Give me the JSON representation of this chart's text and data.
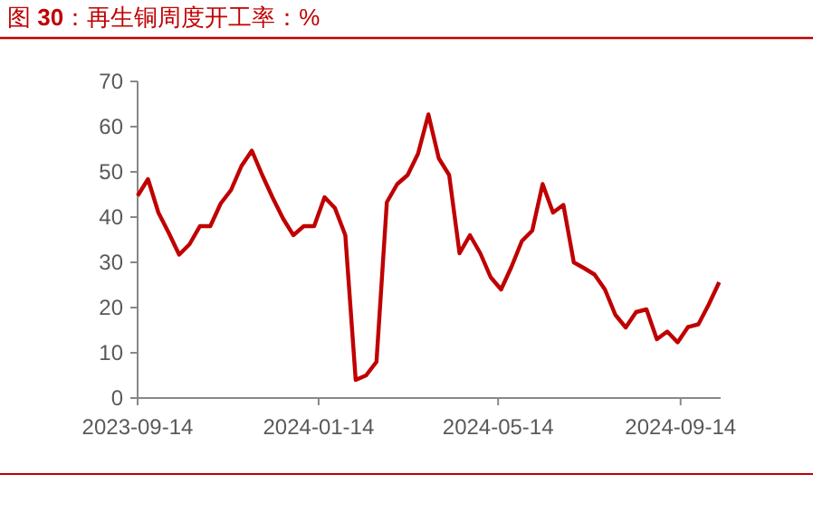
{
  "chart_data": {
    "type": "line",
    "title": "图 30：再生铜周度开工率：%",
    "x": [
      "2023-09-14",
      "2023-09-21",
      "2023-09-28",
      "2023-10-05",
      "2023-10-12",
      "2023-10-19",
      "2023-10-26",
      "2023-11-02",
      "2023-11-09",
      "2023-11-16",
      "2023-11-23",
      "2023-11-30",
      "2023-12-07",
      "2023-12-14",
      "2023-12-21",
      "2023-12-28",
      "2024-01-04",
      "2024-01-11",
      "2024-01-18",
      "2024-01-25",
      "2024-02-01",
      "2024-02-08",
      "2024-02-15",
      "2024-02-22",
      "2024-02-29",
      "2024-03-07",
      "2024-03-14",
      "2024-03-21",
      "2024-03-28",
      "2024-04-04",
      "2024-04-11",
      "2024-04-18",
      "2024-04-25",
      "2024-05-02",
      "2024-05-09",
      "2024-05-16",
      "2024-05-23",
      "2024-05-30",
      "2024-06-06",
      "2024-06-13",
      "2024-06-20",
      "2024-06-27",
      "2024-07-04",
      "2024-07-11",
      "2024-07-18",
      "2024-07-25",
      "2024-08-01",
      "2024-08-08",
      "2024-08-15",
      "2024-08-22",
      "2024-08-29",
      "2024-09-05",
      "2024-09-12",
      "2024-09-19",
      "2024-09-26",
      "2024-10-03",
      "2024-10-10"
    ],
    "series": [
      {
        "color": "#c00000",
        "values": [
          44.7,
          48.4,
          41,
          36.5,
          31.7,
          34,
          38,
          38,
          43,
          46,
          51.3,
          54.7,
          49.3,
          44.3,
          39.7,
          36,
          38,
          38,
          44.4,
          42,
          36,
          4,
          5,
          8,
          43.3,
          47.3,
          49.3,
          54,
          62.7,
          53,
          49.3,
          32,
          36,
          32,
          26.7,
          24,
          29,
          34.7,
          37,
          47.3,
          41,
          42.7,
          30,
          28.7,
          27.3,
          24,
          18.4,
          15.6,
          19,
          19.6,
          13,
          14.7,
          12.3,
          15.7,
          16.3,
          20.7,
          25.6
        ]
      }
    ],
    "xlim": [
      "2023-09-14",
      "2024-10-11"
    ],
    "xticks": [
      "2023-09-14",
      "2024-01-14",
      "2024-05-14",
      "2024-09-14"
    ],
    "ylim": [
      0,
      70
    ],
    "yticks": [
      0,
      10,
      20,
      30,
      40,
      50,
      60,
      70
    ],
    "grid": false,
    "marker": "none",
    "line_style": "solid"
  }
}
